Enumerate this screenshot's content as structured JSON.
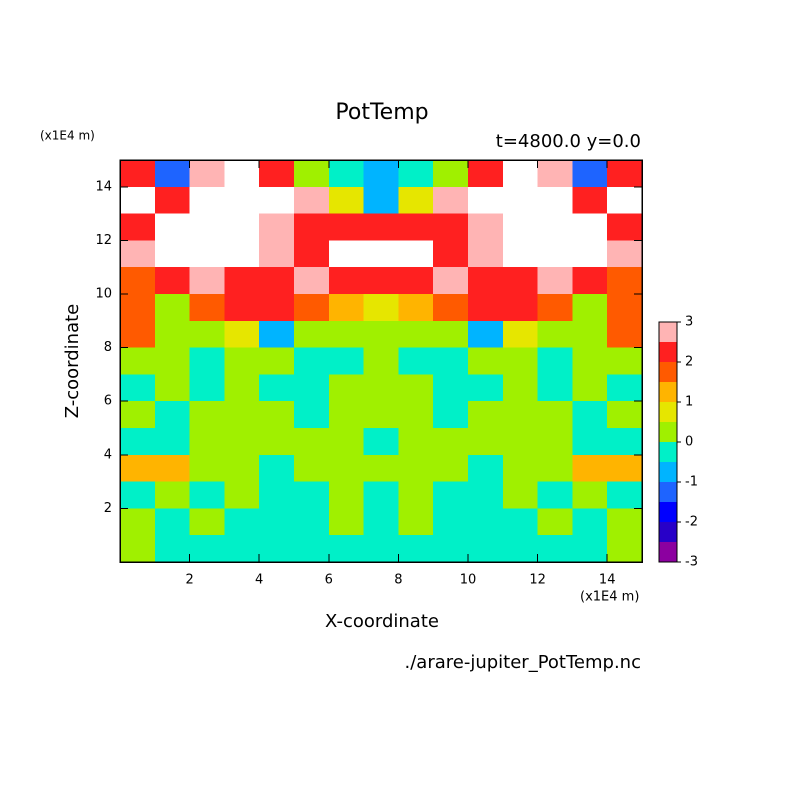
{
  "chart_data": {
    "type": "contour",
    "title": "PotTemp",
    "subtitle": "t=4800.0 y=0.0",
    "x_label": "X-coordinate",
    "y_label": "Z-coordinate",
    "x_unit": "(x1E4 m)",
    "y_unit": "(x1E4 m)",
    "footer": "./arare-jupiter_PotTemp.nc",
    "x": [
      0.5,
      1.5,
      2.5,
      3.5,
      4.5,
      5.5,
      6.5,
      7.5,
      8.5,
      9.5,
      10.5,
      11.5,
      12.5,
      13.5,
      14.5
    ],
    "y": [
      0.5,
      1.5,
      2.5,
      3.5,
      4.5,
      5.5,
      6.5,
      7.5,
      8.5,
      9.5,
      10.5,
      11.5,
      12.5,
      13.5,
      14.5
    ],
    "values": [
      [
        0.2,
        -0.3,
        -0.3,
        -0.3,
        -0.3,
        -0.3,
        -0.3,
        -0.3,
        -0.3,
        -0.3,
        -0.3,
        -0.3,
        -0.3,
        -0.3,
        0.2
      ],
      [
        0.2,
        -0.3,
        0.2,
        -0.3,
        -0.3,
        -0.3,
        0.2,
        -0.3,
        0.2,
        -0.3,
        -0.3,
        -0.3,
        0.2,
        -0.3,
        0.2
      ],
      [
        -0.3,
        0.2,
        -0.3,
        0.2,
        -0.3,
        -0.3,
        0.2,
        -0.3,
        0.2,
        -0.3,
        -0.3,
        0.2,
        -0.3,
        0.2,
        -0.3
      ],
      [
        1.2,
        1.2,
        0.2,
        0.2,
        -0.3,
        0.2,
        0.2,
        0.2,
        0.2,
        0.2,
        -0.3,
        0.2,
        0.2,
        1.2,
        1.2
      ],
      [
        -0.3,
        -0.3,
        0.2,
        0.2,
        0.2,
        0.2,
        0.2,
        -0.3,
        0.2,
        0.2,
        0.2,
        0.2,
        0.2,
        -0.3,
        -0.3
      ],
      [
        0.2,
        -0.3,
        0.2,
        0.2,
        0.2,
        -0.3,
        0.2,
        0.2,
        0.2,
        -0.3,
        0.2,
        0.2,
        0.2,
        -0.3,
        0.2
      ],
      [
        -0.3,
        0.2,
        -0.3,
        0.2,
        -0.3,
        -0.3,
        0.2,
        0.2,
        0.2,
        -0.3,
        -0.3,
        0.2,
        -0.3,
        0.2,
        -0.3
      ],
      [
        0.2,
        0.2,
        -0.3,
        0.2,
        0.2,
        -0.3,
        -0.3,
        0.2,
        -0.3,
        -0.3,
        0.2,
        0.2,
        -0.3,
        0.2,
        0.2
      ],
      [
        1.8,
        0.2,
        0.2,
        0.7,
        -0.7,
        0.2,
        0.2,
        0.2,
        0.2,
        0.2,
        -0.7,
        0.7,
        0.2,
        0.2,
        1.8
      ],
      [
        1.8,
        0.2,
        1.8,
        2.2,
        2.2,
        1.8,
        1.2,
        0.7,
        1.2,
        1.8,
        2.2,
        2.2,
        1.8,
        0.2,
        1.8
      ],
      [
        1.8,
        2.2,
        2.7,
        2.2,
        2.2,
        2.7,
        2.2,
        2.2,
        2.2,
        2.7,
        2.2,
        2.2,
        2.7,
        2.2,
        1.8
      ],
      [
        2.7,
        3.5,
        3.5,
        3.5,
        2.7,
        2.2,
        3.5,
        3.5,
        3.5,
        2.2,
        2.7,
        3.5,
        3.5,
        3.5,
        2.7
      ],
      [
        2.2,
        3.5,
        3.5,
        3.5,
        2.5,
        2.2,
        2.2,
        2.2,
        2.2,
        2.2,
        2.5,
        3.5,
        3.5,
        3.5,
        2.2
      ],
      [
        3.5,
        2,
        3.5,
        3.5,
        3.5,
        2.5,
        0.5,
        -1,
        0.5,
        2.5,
        3.5,
        3.5,
        3.5,
        2,
        3.5
      ],
      [
        2,
        -1.5,
        2.5,
        3.5,
        2,
        0.2,
        -0.3,
        -1,
        -0.3,
        0.2,
        2,
        3.5,
        2.5,
        -1.5,
        2
      ]
    ],
    "xlim": [
      0,
      15
    ],
    "ylim": [
      0,
      15
    ],
    "xticks": [
      2,
      4,
      6,
      8,
      10,
      12,
      14
    ],
    "yticks": [
      2,
      4,
      6,
      8,
      10,
      12,
      14
    ],
    "levels": [
      -3,
      -2.5,
      -2,
      -1.5,
      -1,
      -0.5,
      0,
      0.5,
      1,
      1.5,
      2,
      2.5,
      3
    ],
    "colors": [
      "#8c00a0",
      "#2800c8",
      "#0000ff",
      "#1e64ff",
      "#00b4ff",
      "#00f0c8",
      "#a0f000",
      "#e6e600",
      "#ffb400",
      "#ff5a00",
      "#ff2020",
      "#ffb4b4"
    ],
    "above_color": "#ffffff",
    "colorbar_ticks": [
      -3,
      -2,
      -1,
      0,
      1,
      2,
      3
    ]
  }
}
